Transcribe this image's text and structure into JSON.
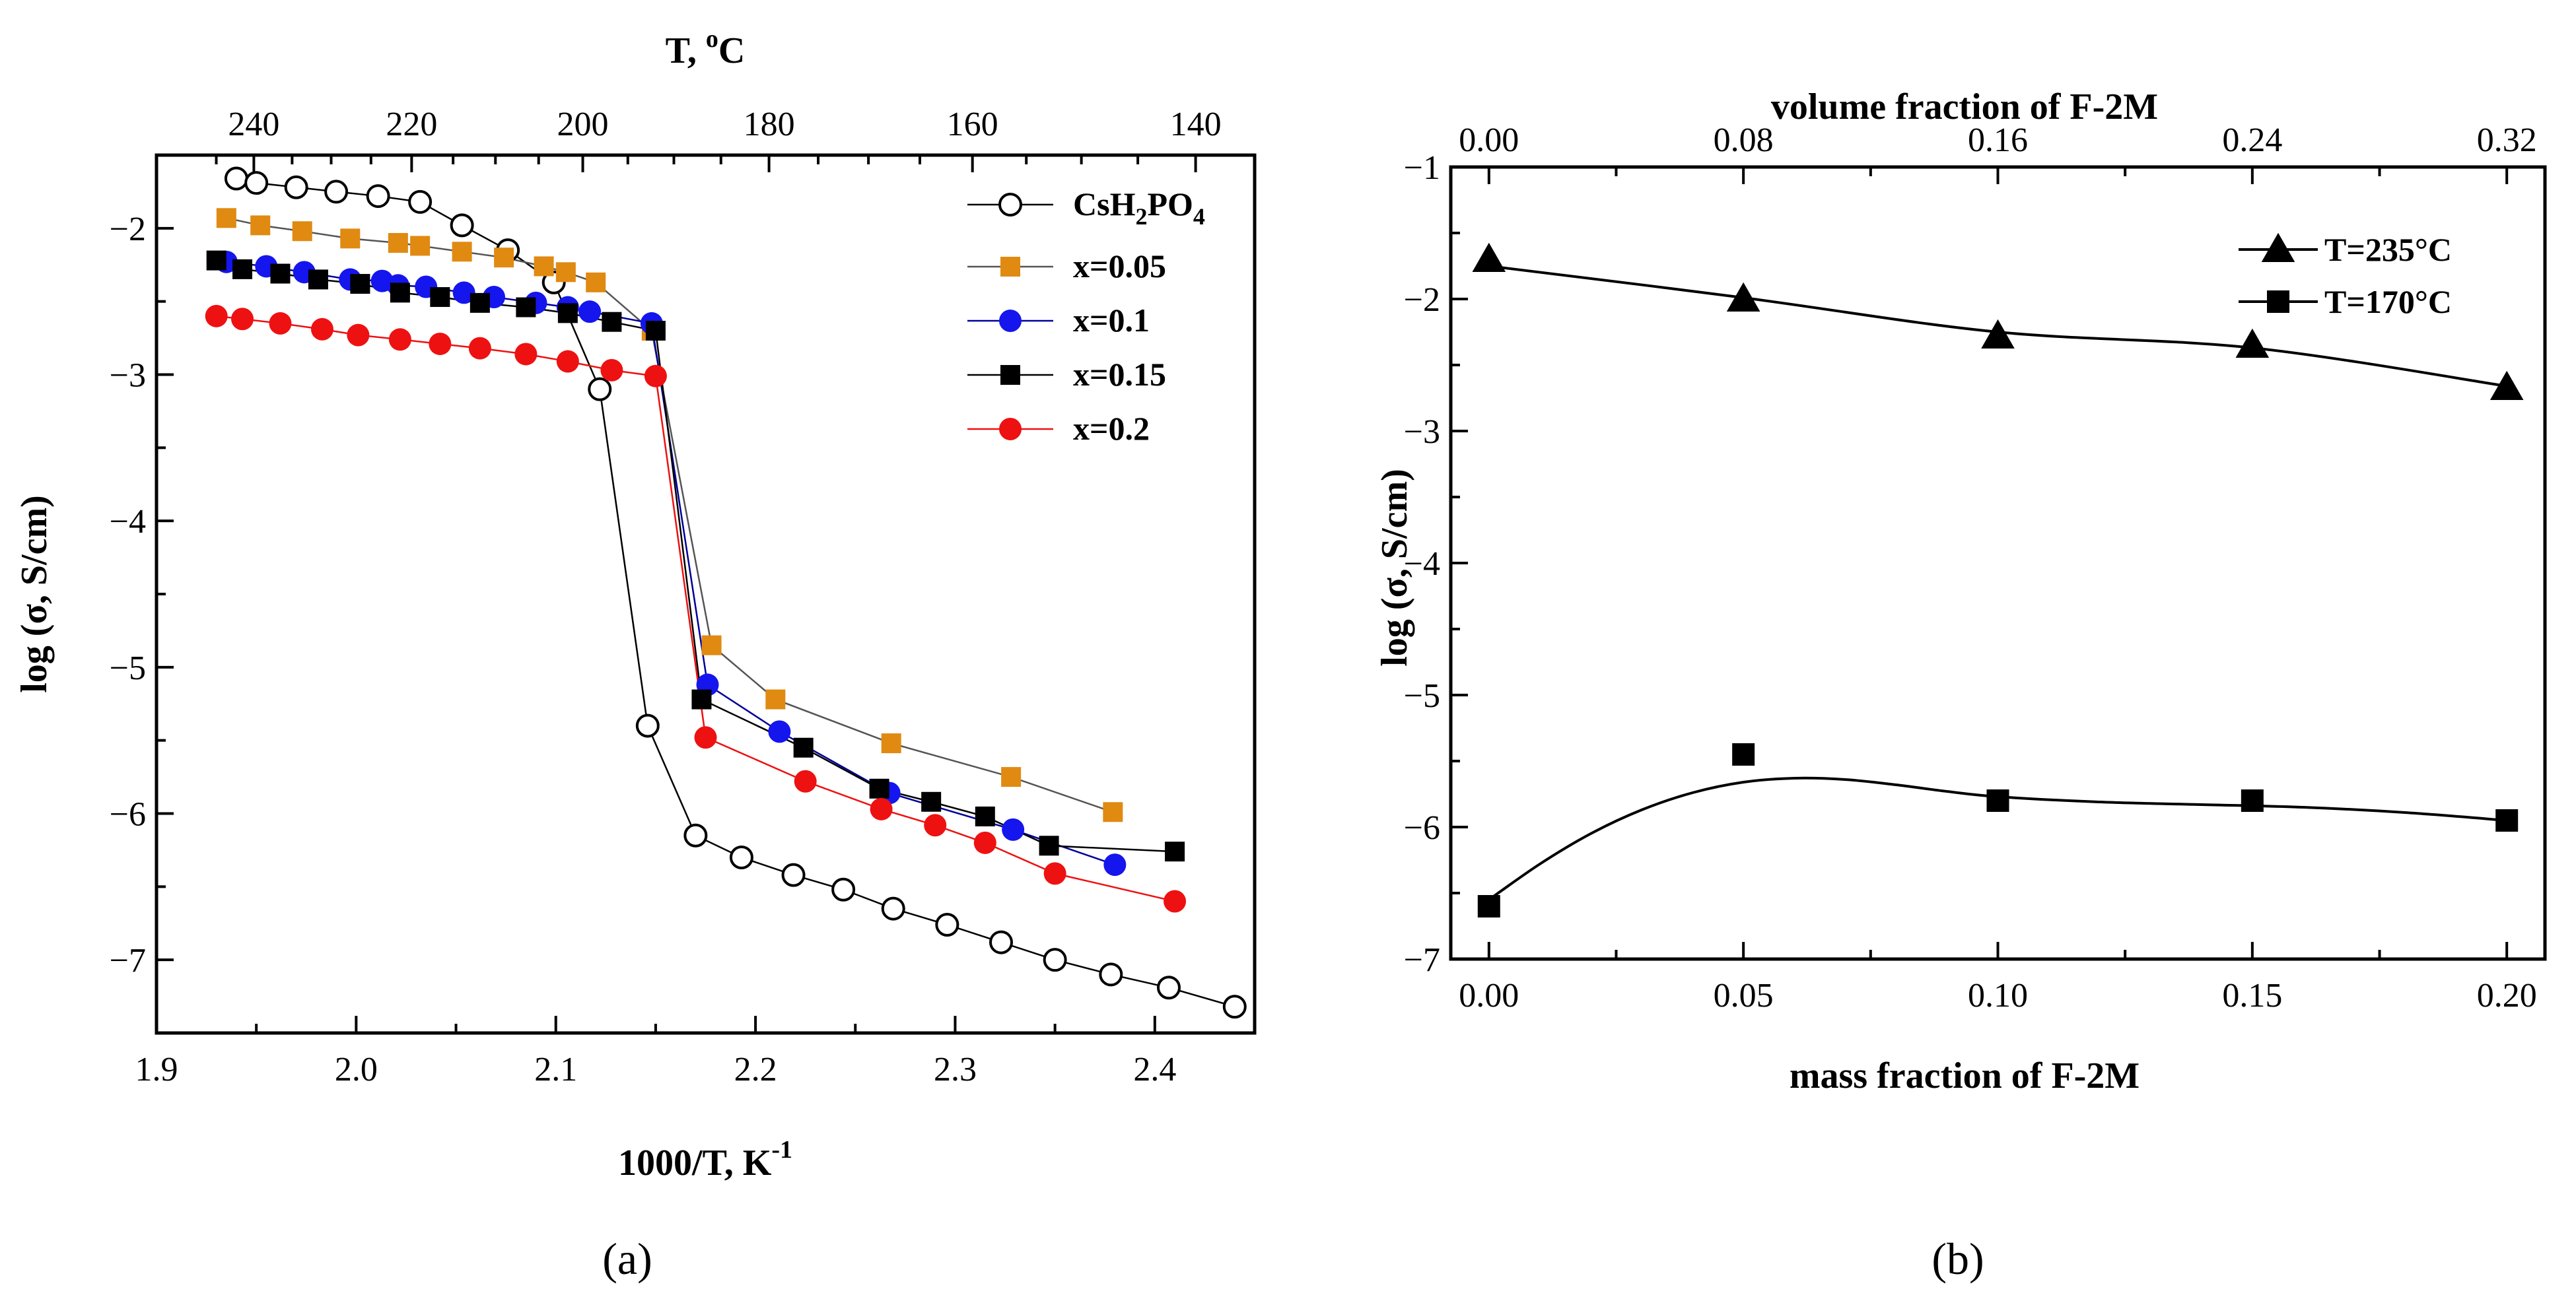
{
  "chart_data": [
    {
      "panel": "a",
      "caption": "(a)",
      "type": "line",
      "title": "",
      "xlabel": "1000/T, K",
      "xlabel_sup": "-1",
      "ylabel": "log (σ, S/cm)",
      "toplabel": "T, ",
      "toplabel_sup": "o",
      "toplabel_tail": "C",
      "xlim": [
        1.9,
        2.45
      ],
      "ylim": [
        -7.5,
        -1.5
      ],
      "xticks": [
        1.9,
        2.0,
        2.1,
        2.2,
        2.3,
        2.4
      ],
      "xtick_labels": [
        "1.9",
        "2.0",
        "2.1",
        "2.2",
        "2.3",
        "2.4"
      ],
      "yticks": [
        -7,
        -6,
        -5,
        -4,
        -3,
        -2
      ],
      "ytick_labels": [
        "−7",
        "−6",
        "−5",
        "−4",
        "−3",
        "−2"
      ],
      "top_ticks_celsius": [
        240,
        220,
        200,
        180,
        160,
        140
      ],
      "top_tick_labels": [
        "240",
        "220",
        "200",
        "180",
        "160",
        "140"
      ],
      "legend_position": "top-right",
      "series": [
        {
          "name": "CsH2PO4",
          "label_main": "CsH",
          "label_sub1": "2",
          "label_mid": "PO",
          "label_sub2": "4",
          "marker": "circle-open",
          "color": "#000000",
          "line_color": "#000000",
          "x": [
            1.94,
            1.95,
            1.97,
            1.99,
            2.011,
            2.032,
            2.053,
            2.076,
            2.099,
            2.122,
            2.146,
            2.17,
            2.193,
            2.219,
            2.244,
            2.269,
            2.296,
            2.323,
            2.35,
            2.378,
            2.407,
            2.44
          ],
          "values": [
            -1.66,
            -1.69,
            -1.72,
            -1.75,
            -1.78,
            -1.82,
            -1.98,
            -2.15,
            -2.37,
            -3.1,
            -5.4,
            -6.15,
            -6.3,
            -6.42,
            -6.52,
            -6.65,
            -6.76,
            -6.88,
            -7.0,
            -7.1,
            -7.19,
            -7.32
          ]
        },
        {
          "name": "x=0.05",
          "marker": "square",
          "color": "#E08A12",
          "line_color": "#555555",
          "x": [
            1.935,
            1.952,
            1.973,
            1.997,
            2.021,
            2.032,
            2.053,
            2.074,
            2.094,
            2.105,
            2.12,
            2.148,
            2.178,
            2.21,
            2.268,
            2.328,
            2.379
          ],
          "values": [
            -1.93,
            -1.98,
            -2.02,
            -2.07,
            -2.1,
            -2.12,
            -2.16,
            -2.2,
            -2.26,
            -2.3,
            -2.37,
            -2.7,
            -4.85,
            -5.22,
            -5.52,
            -5.75,
            -5.99
          ]
        },
        {
          "name": "x=0.1",
          "marker": "circle",
          "color": "#1515EE",
          "line_color": "#000099",
          "x": [
            1.935,
            1.955,
            1.974,
            1.997,
            2.013,
            2.021,
            2.035,
            2.054,
            2.069,
            2.09,
            2.106,
            2.117,
            2.148,
            2.176,
            2.212,
            2.267,
            2.329,
            2.38
          ],
          "values": [
            -2.23,
            -2.26,
            -2.3,
            -2.35,
            -2.36,
            -2.39,
            -2.4,
            -2.44,
            -2.47,
            -2.51,
            -2.54,
            -2.57,
            -2.65,
            -5.12,
            -5.44,
            -5.86,
            -6.11,
            -6.35
          ]
        },
        {
          "name": "x=0.15",
          "marker": "square",
          "color": "#000000",
          "line_color": "#000000",
          "x": [
            1.93,
            1.943,
            1.962,
            1.981,
            2.002,
            2.022,
            2.042,
            2.062,
            2.085,
            2.106,
            2.128,
            2.15,
            2.173,
            2.224,
            2.262,
            2.288,
            2.315,
            2.347,
            2.41
          ],
          "values": [
            -2.22,
            -2.28,
            -2.31,
            -2.35,
            -2.38,
            -2.44,
            -2.47,
            -2.51,
            -2.54,
            -2.58,
            -2.64,
            -2.7,
            -5.22,
            -5.55,
            -5.83,
            -5.92,
            -6.02,
            -6.22,
            -6.26
          ]
        },
        {
          "name": "x=0.2",
          "marker": "circle",
          "color": "#EE1111",
          "line_color": "#EE1111",
          "x": [
            1.93,
            1.943,
            1.962,
            1.983,
            2.001,
            2.022,
            2.042,
            2.062,
            2.085,
            2.106,
            2.128,
            2.15,
            2.175,
            2.225,
            2.263,
            2.29,
            2.315,
            2.35,
            2.41
          ],
          "values": [
            -2.6,
            -2.62,
            -2.65,
            -2.69,
            -2.73,
            -2.76,
            -2.79,
            -2.82,
            -2.86,
            -2.91,
            -2.97,
            -3.01,
            -5.48,
            -5.78,
            -5.97,
            -6.08,
            -6.2,
            -6.41,
            -6.6
          ]
        }
      ]
    },
    {
      "panel": "b",
      "caption": "(b)",
      "type": "line",
      "title": "",
      "xlabel": "mass fraction of F-2M",
      "ylabel": "log (σ, S/cm)",
      "toplabel": "volume fraction of F-2M",
      "xlim": [
        0.0,
        0.2
      ],
      "ylim": [
        -7,
        -1
      ],
      "xticks": [
        0.0,
        0.05,
        0.1,
        0.15,
        0.2
      ],
      "xtick_labels": [
        "0.00",
        "0.05",
        "0.10",
        "0.15",
        "0.20"
      ],
      "yticks": [
        -7,
        -6,
        -5,
        -4,
        -3,
        -2,
        -1
      ],
      "ytick_labels": [
        "−7",
        "−6",
        "−5",
        "−4",
        "−3",
        "−2",
        "−1"
      ],
      "top_xlim": [
        0.0,
        0.32
      ],
      "top_ticks": [
        0.0,
        0.08,
        0.16,
        0.24,
        0.32
      ],
      "top_tick_labels": [
        "0.00",
        "0.08",
        "0.16",
        "0.24",
        "0.32"
      ],
      "legend_position": "top-right",
      "series": [
        {
          "name": "T=235°C",
          "marker": "triangle",
          "color": "#000000",
          "x": [
            0.0,
            0.05,
            0.1,
            0.15,
            0.2
          ],
          "values": [
            -1.7,
            -2.0,
            -2.28,
            -2.35,
            -2.67
          ],
          "curve_x": [
            0.0,
            0.05,
            0.1,
            0.15,
            0.2
          ],
          "curve_values": [
            -1.75,
            -1.99,
            -2.25,
            -2.37,
            -2.66
          ]
        },
        {
          "name": "T=170°C",
          "marker": "square",
          "color": "#000000",
          "x": [
            0.0,
            0.05,
            0.1,
            0.15,
            0.2
          ],
          "values": [
            -6.6,
            -5.45,
            -5.8,
            -5.8,
            -5.95
          ],
          "curve_x": [
            0.0,
            0.01,
            0.02,
            0.03,
            0.04,
            0.05,
            0.06,
            0.07,
            0.08,
            0.09,
            0.1,
            0.12,
            0.14,
            0.16,
            0.18,
            0.2
          ],
          "curve_values": [
            -6.55,
            -6.28,
            -6.05,
            -5.87,
            -5.74,
            -5.66,
            -5.63,
            -5.64,
            -5.68,
            -5.73,
            -5.77,
            -5.81,
            -5.83,
            -5.85,
            -5.89,
            -5.95
          ]
        }
      ]
    }
  ]
}
